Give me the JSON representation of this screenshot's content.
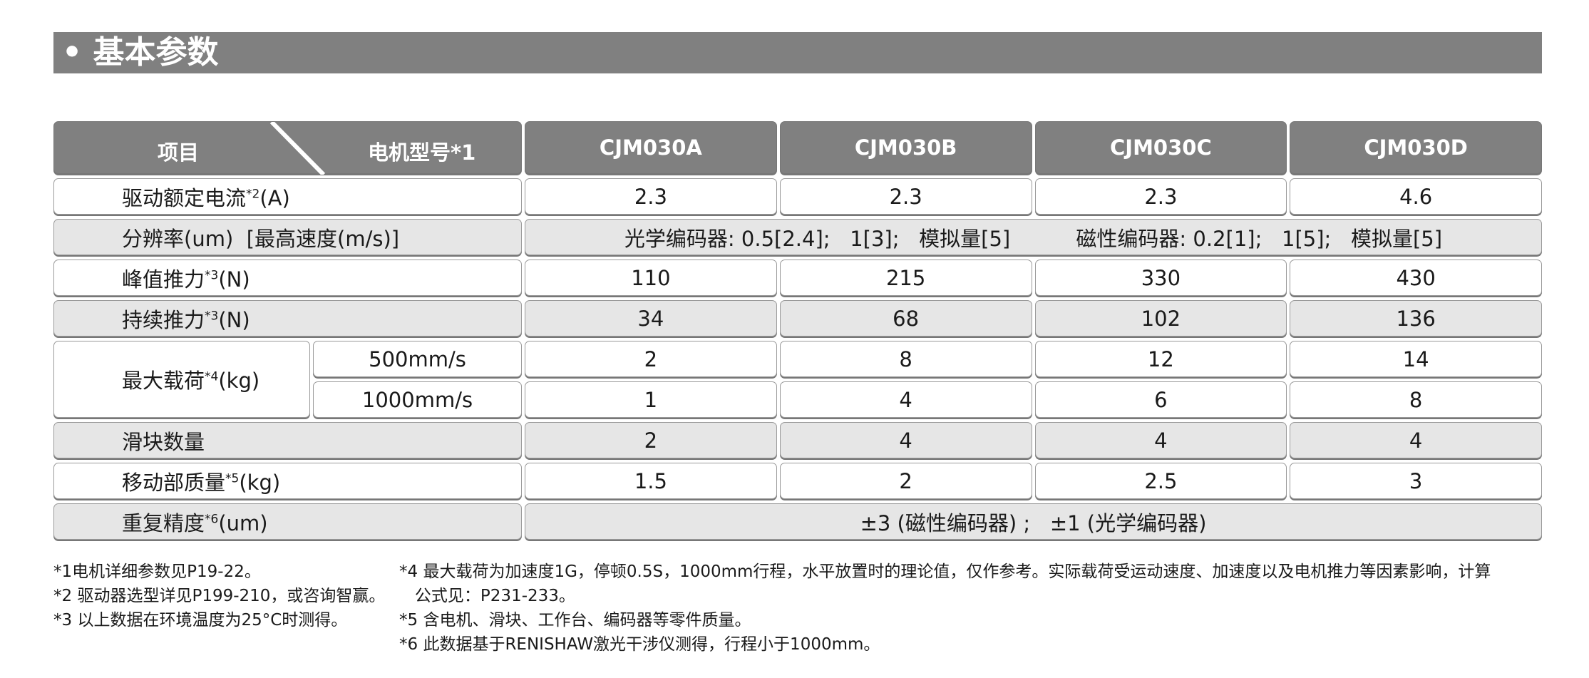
{
  "title": "• 基本参数",
  "header": {
    "item": "项目",
    "model": "电机型号",
    "model_note": "*1",
    "models": [
      "CJM030A",
      "CJM030B",
      "CJM030C",
      "CJM030D"
    ]
  },
  "rows": {
    "current": {
      "label": "驱动额定电流",
      "note": "*2",
      "unit": "(A)",
      "values": [
        "2.3",
        "2.3",
        "2.3",
        "4.6"
      ]
    },
    "resolution": {
      "label": "分辨率(um)  [最高速度(m/s)]",
      "value": "光学编码器: 0.5[2.4];   1[3];   模拟量[5]          磁性编码器: 0.2[1];   1[5];   模拟量[5]"
    },
    "peak": {
      "label": "峰值推力",
      "note": "*3",
      "unit": "(N)",
      "values": [
        "110",
        "215",
        "330",
        "430"
      ]
    },
    "cont": {
      "label": "持续推力",
      "note": "*3",
      "unit": "(N)",
      "values": [
        "34",
        "68",
        "102",
        "136"
      ]
    },
    "load": {
      "label": "最大载荷",
      "note": "*4",
      "unit": "(kg)",
      "speeds": [
        "500mm/s",
        "1000mm/s"
      ],
      "v500": [
        "2",
        "8",
        "12",
        "14"
      ],
      "v1000": [
        "1",
        "4",
        "6",
        "8"
      ]
    },
    "sliders": {
      "label": "滑块数量",
      "values": [
        "2",
        "4",
        "4",
        "4"
      ]
    },
    "mass": {
      "label": "移动部质量",
      "note": "*5",
      "unit": "(kg)",
      "values": [
        "1.5",
        "2",
        "2.5",
        "3"
      ]
    },
    "repeat": {
      "label": "重复精度",
      "note": "*6",
      "unit": "(um)",
      "value": "±3 (磁性编码器) ;   ±1 (光学编码器)"
    }
  },
  "footnotes": {
    "left": [
      "*1电机详细参数见P19-22。",
      "*2 驱动器选型详见P199-210，或咨询智赢。",
      "*3 以上数据在环境温度为25°C时测得。"
    ],
    "right": [
      "*4 最大载荷为加速度1G，停顿0.5S，1000mm行程，水平放置时的理论值，仅作参考。实际载荷受运动速度、加速度以及电机推力等因素影响，计算",
      "   公式见：P231-233。",
      "*5 含电机、滑块、工作台、编码器等零件质量。",
      "*6 此数据基于RENISHAW激光干涉仪测得，行程小于1000mm。"
    ]
  }
}
